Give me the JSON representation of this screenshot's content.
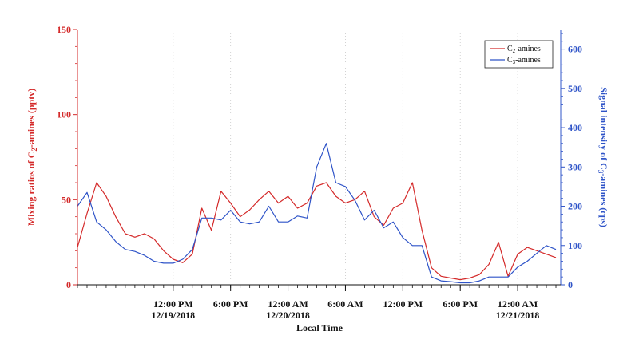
{
  "chart_data": {
    "type": "line",
    "title": "",
    "xlabel": "Local Time",
    "ylabel_left": {
      "prefix": "Mixing ratios of C",
      "sub": "2",
      "suffix": "-amines (pptv)"
    },
    "ylabel_right": {
      "prefix": "Signal intensity of C",
      "sub": "3",
      "suffix": "-amines (cps)"
    },
    "x_range": [
      "2018-12-19T02:00",
      "2018-12-21T04:30"
    ],
    "ylim_left": [
      0,
      150
    ],
    "ylim_right": [
      0,
      650
    ],
    "left_ticks": [
      0,
      50,
      100,
      150
    ],
    "right_ticks": [
      0,
      100,
      200,
      300,
      400,
      500,
      600
    ],
    "x_major_ticks": [
      {
        "time": "2018-12-19T12:00",
        "line1": "12:00 PM",
        "line2": "12/19/2018"
      },
      {
        "time": "2018-12-19T18:00",
        "line1": "6:00 PM",
        "line2": ""
      },
      {
        "time": "2018-12-20T00:00",
        "line1": "12:00 AM",
        "line2": "12/20/2018"
      },
      {
        "time": "2018-12-20T06:00",
        "line1": "6:00 AM",
        "line2": ""
      },
      {
        "time": "2018-12-20T12:00",
        "line1": "12:00 PM",
        "line2": ""
      },
      {
        "time": "2018-12-20T18:00",
        "line1": "6:00 PM",
        "line2": ""
      },
      {
        "time": "2018-12-21T00:00",
        "line1": "12:00 AM",
        "line2": "12/21/2018"
      }
    ],
    "minor_tick_hours": 1,
    "grid": "vertical dotted at major ticks",
    "legend_position": "top-right",
    "series": [
      {
        "name_prefix": "C",
        "name_sub": "2",
        "name_suffix": "-amines",
        "axis": "left",
        "color": "#d42a2a",
        "x": [
          "2018-12-19T02:00",
          "2018-12-19T03:00",
          "2018-12-19T04:00",
          "2018-12-19T05:00",
          "2018-12-19T06:00",
          "2018-12-19T07:00",
          "2018-12-19T08:00",
          "2018-12-19T09:00",
          "2018-12-19T10:00",
          "2018-12-19T11:00",
          "2018-12-19T12:00",
          "2018-12-19T13:00",
          "2018-12-19T14:00",
          "2018-12-19T15:00",
          "2018-12-19T16:00",
          "2018-12-19T17:00",
          "2018-12-19T18:00",
          "2018-12-19T19:00",
          "2018-12-19T20:00",
          "2018-12-19T21:00",
          "2018-12-19T22:00",
          "2018-12-19T23:00",
          "2018-12-20T00:00",
          "2018-12-20T01:00",
          "2018-12-20T02:00",
          "2018-12-20T03:00",
          "2018-12-20T04:00",
          "2018-12-20T05:00",
          "2018-12-20T06:00",
          "2018-12-20T07:00",
          "2018-12-20T08:00",
          "2018-12-20T09:00",
          "2018-12-20T10:00",
          "2018-12-20T11:00",
          "2018-12-20T12:00",
          "2018-12-20T13:00",
          "2018-12-20T14:00",
          "2018-12-20T15:00",
          "2018-12-20T16:00",
          "2018-12-20T17:00",
          "2018-12-20T18:00",
          "2018-12-20T19:00",
          "2018-12-20T20:00",
          "2018-12-20T21:00",
          "2018-12-20T22:00",
          "2018-12-20T23:00",
          "2018-12-21T00:00",
          "2018-12-21T01:00",
          "2018-12-21T02:00",
          "2018-12-21T03:00",
          "2018-12-21T04:00"
        ],
        "values": [
          22,
          42,
          60,
          52,
          40,
          30,
          28,
          30,
          27,
          20,
          15,
          13,
          18,
          45,
          32,
          55,
          48,
          40,
          44,
          50,
          55,
          48,
          52,
          45,
          48,
          58,
          60,
          52,
          48,
          50,
          55,
          40,
          35,
          45,
          48,
          60,
          32,
          10,
          5,
          4,
          3,
          4,
          6,
          12,
          25,
          5,
          18,
          22,
          20,
          18,
          16
        ]
      },
      {
        "name_prefix": "C",
        "name_sub": "3",
        "name_suffix": "-amines",
        "axis": "right",
        "color": "#2f54c8",
        "x": [
          "2018-12-19T02:00",
          "2018-12-19T03:00",
          "2018-12-19T04:00",
          "2018-12-19T05:00",
          "2018-12-19T06:00",
          "2018-12-19T07:00",
          "2018-12-19T08:00",
          "2018-12-19T09:00",
          "2018-12-19T10:00",
          "2018-12-19T11:00",
          "2018-12-19T12:00",
          "2018-12-19T13:00",
          "2018-12-19T14:00",
          "2018-12-19T15:00",
          "2018-12-19T16:00",
          "2018-12-19T17:00",
          "2018-12-19T18:00",
          "2018-12-19T19:00",
          "2018-12-19T20:00",
          "2018-12-19T21:00",
          "2018-12-19T22:00",
          "2018-12-19T23:00",
          "2018-12-20T00:00",
          "2018-12-20T01:00",
          "2018-12-20T02:00",
          "2018-12-20T03:00",
          "2018-12-20T04:00",
          "2018-12-20T05:00",
          "2018-12-20T06:00",
          "2018-12-20T07:00",
          "2018-12-20T08:00",
          "2018-12-20T09:00",
          "2018-12-20T10:00",
          "2018-12-20T11:00",
          "2018-12-20T12:00",
          "2018-12-20T13:00",
          "2018-12-20T14:00",
          "2018-12-20T15:00",
          "2018-12-20T16:00",
          "2018-12-20T17:00",
          "2018-12-20T18:00",
          "2018-12-20T19:00",
          "2018-12-20T20:00",
          "2018-12-20T21:00",
          "2018-12-20T22:00",
          "2018-12-20T23:00",
          "2018-12-21T00:00",
          "2018-12-21T01:00",
          "2018-12-21T02:00",
          "2018-12-21T03:00",
          "2018-12-21T04:00"
        ],
        "values": [
          200,
          235,
          160,
          140,
          110,
          90,
          85,
          75,
          60,
          55,
          55,
          65,
          90,
          170,
          170,
          165,
          190,
          160,
          155,
          160,
          200,
          160,
          160,
          175,
          170,
          300,
          360,
          260,
          250,
          215,
          165,
          190,
          145,
          160,
          120,
          100,
          100,
          20,
          10,
          8,
          5,
          5,
          10,
          20,
          20,
          20,
          45,
          60,
          80,
          100,
          90
        ]
      }
    ]
  }
}
